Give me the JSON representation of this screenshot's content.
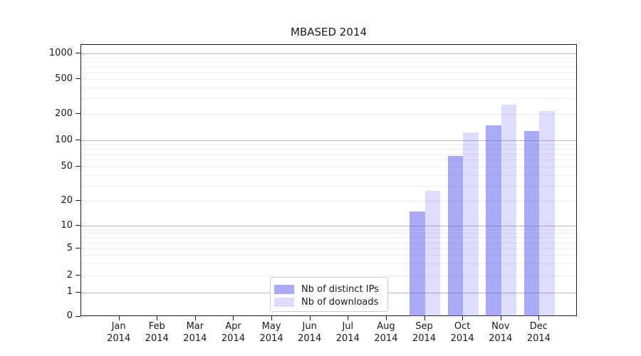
{
  "title": "MBASED 2014",
  "chart_data": {
    "type": "bar",
    "title": "MBASED 2014",
    "categories": [
      "Jan 2014",
      "Feb 2014",
      "Mar 2014",
      "Apr 2014",
      "May 2014",
      "Jun 2014",
      "Jul 2014",
      "Aug 2014",
      "Sep 2014",
      "Oct 2014",
      "Nov 2014",
      "Dec 2014"
    ],
    "series": [
      {
        "name": "Nb of distinct IPs",
        "color": "rgba(100,100,240,0.55)",
        "values": [
          0,
          0,
          0,
          0,
          0,
          0,
          0,
          0,
          15,
          66,
          147,
          127
        ]
      },
      {
        "name": "Nb of downloads",
        "color": "rgba(100,100,240,0.22)",
        "values": [
          0,
          0,
          0,
          0,
          0,
          0,
          0,
          0,
          26,
          122,
          255,
          215
        ]
      }
    ],
    "xlabel": "",
    "ylabel": "",
    "yscale": "asinh (linear near 0, logarithmic above 1)",
    "y_ticks": [
      0,
      1,
      2,
      5,
      10,
      20,
      50,
      100,
      200,
      500,
      1000
    ],
    "ylim": [
      0,
      1300
    ],
    "grid": "major gridlines at 1,10,100,1000 (gray); minor gridlines at 2-9 multiples (light gray)",
    "legend_position": "lower center inside plot"
  },
  "legend": {
    "items": [
      {
        "label": "Nb of distinct IPs"
      },
      {
        "label": "Nb of downloads"
      }
    ]
  },
  "colors": {
    "bar_distinct_ips": "rgba(100,100,240,0.55)",
    "bar_downloads": "rgba(100,100,240,0.22)",
    "major_grid": "#b8b8b8",
    "minor_grid": "#ececec",
    "spine": "#1a1a1a"
  }
}
